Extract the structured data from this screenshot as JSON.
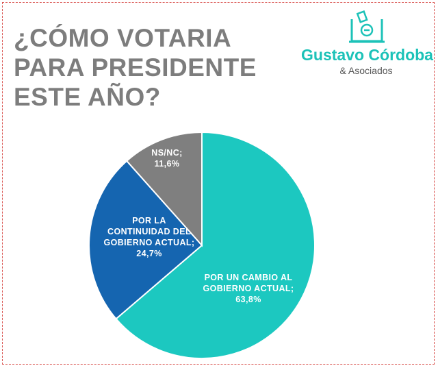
{
  "title_lines": [
    "¿CÓMO VOTARIA",
    "PARA PRESIDENTE",
    "ESTE AÑO?"
  ],
  "logo": {
    "name": "Gustavo Córdoba",
    "subtitle": "& Asociados",
    "icon": "ballot-box-icon",
    "color": "#1cc2b8"
  },
  "chart_data": {
    "type": "pie",
    "slices": [
      {
        "label_lines": [
          "POR UN CAMBIO AL",
          "GOBIERNO ACTUAL;",
          "63,8%"
        ],
        "value": 63.8,
        "color": "#1cc8c0"
      },
      {
        "label_lines": [
          "POR LA",
          "CONTINUIDAD DEL",
          "GOBIERNO ACTUAL;",
          "24,7%"
        ],
        "value": 24.7,
        "color": "#1565b0"
      },
      {
        "label_lines": [
          "NS/NC;",
          "11,6%"
        ],
        "value": 11.6,
        "color": "#7f7f7f"
      }
    ]
  }
}
